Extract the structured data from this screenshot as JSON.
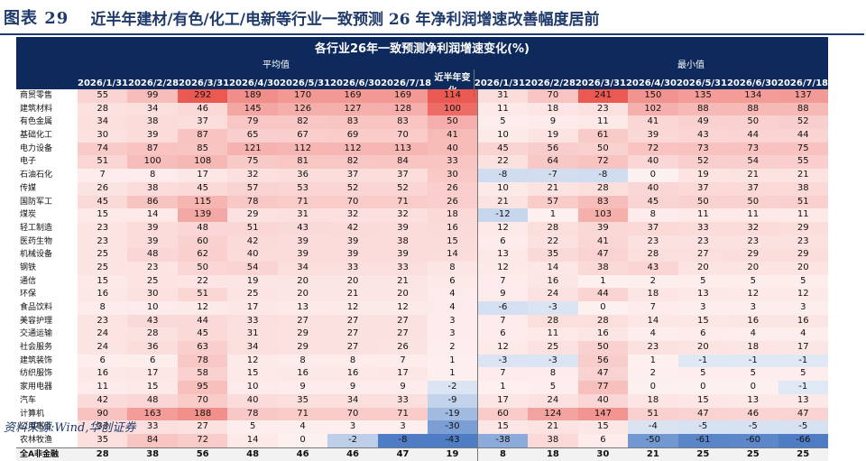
{
  "header": {
    "figure_label": "图表 29",
    "title": "近半年建材/有色/化工/电新等行业一致预测 26 年净利润增速改善幅度居前"
  },
  "table": {
    "caption": "各行业26年一致预测净利润增速变化(%)",
    "group_avg": "平均值",
    "group_min": "最小值",
    "columns": [
      "2026/1/31",
      "2026/2/28",
      "2026/3/31",
      "2026/4/30",
      "2026/5/31",
      "2026/6/30",
      "2026/7/18",
      "近半年变化",
      "2026/1/31",
      "2026/2/28",
      "2026/3/31",
      "2026/4/30",
      "2026/5/31",
      "2026/6/30",
      "2026/7/18"
    ],
    "rows": [
      {
        "name": "商贸零售",
        "values": [
          55,
          99,
          292,
          189,
          170,
          169,
          169,
          114,
          31,
          70,
          241,
          150,
          135,
          134,
          137
        ]
      },
      {
        "name": "建筑材料",
        "values": [
          28,
          34,
          46,
          145,
          126,
          127,
          128,
          100,
          11,
          18,
          23,
          102,
          88,
          88,
          88
        ]
      },
      {
        "name": "有色金属",
        "values": [
          34,
          38,
          37,
          79,
          82,
          83,
          83,
          50,
          5,
          9,
          11,
          41,
          49,
          50,
          52
        ]
      },
      {
        "name": "基础化工",
        "values": [
          30,
          39,
          87,
          65,
          67,
          69,
          70,
          41,
          10,
          19,
          61,
          39,
          43,
          44,
          44
        ]
      },
      {
        "name": "电力设备",
        "values": [
          74,
          87,
          85,
          121,
          112,
          112,
          113,
          40,
          45,
          56,
          50,
          72,
          73,
          73,
          75
        ]
      },
      {
        "name": "电子",
        "values": [
          51,
          100,
          108,
          75,
          81,
          82,
          84,
          33,
          22,
          64,
          72,
          40,
          52,
          54,
          55
        ]
      },
      {
        "name": "石油石化",
        "values": [
          7,
          8,
          17,
          32,
          36,
          37,
          37,
          30,
          -8,
          -7,
          -8,
          0,
          19,
          21,
          21
        ]
      },
      {
        "name": "传媒",
        "values": [
          26,
          38,
          45,
          57,
          53,
          52,
          52,
          26,
          10,
          21,
          28,
          40,
          37,
          37,
          38
        ]
      },
      {
        "name": "国防军工",
        "values": [
          45,
          86,
          115,
          78,
          71,
          70,
          71,
          26,
          21,
          57,
          83,
          45,
          50,
          50,
          51
        ]
      },
      {
        "name": "煤炭",
        "values": [
          15,
          14,
          139,
          29,
          31,
          32,
          32,
          18,
          -12,
          1,
          103,
          8,
          11,
          11,
          11
        ]
      },
      {
        "name": "轻工制造",
        "values": [
          23,
          39,
          48,
          51,
          43,
          42,
          39,
          16,
          12,
          28,
          39,
          37,
          33,
          32,
          29
        ]
      },
      {
        "name": "医药生物",
        "values": [
          23,
          39,
          60,
          42,
          39,
          39,
          38,
          15,
          6,
          22,
          41,
          23,
          23,
          23,
          23
        ]
      },
      {
        "name": "机械设备",
        "values": [
          25,
          48,
          62,
          40,
          39,
          39,
          39,
          14,
          13,
          35,
          47,
          28,
          27,
          29,
          29
        ]
      },
      {
        "name": "钢铁",
        "values": [
          25,
          23,
          50,
          54,
          34,
          33,
          33,
          8,
          12,
          14,
          38,
          43,
          20,
          20,
          20
        ]
      },
      {
        "name": "通信",
        "values": [
          15,
          25,
          22,
          19,
          20,
          20,
          21,
          6,
          7,
          16,
          1,
          2,
          5,
          5,
          5
        ]
      },
      {
        "name": "环保",
        "values": [
          16,
          30,
          51,
          25,
          20,
          21,
          20,
          4,
          9,
          24,
          44,
          18,
          13,
          12,
          12
        ]
      },
      {
        "name": "食品饮料",
        "values": [
          8,
          10,
          12,
          17,
          13,
          12,
          12,
          4,
          -6,
          -3,
          0,
          7,
          3,
          3,
          3
        ]
      },
      {
        "name": "美容护理",
        "values": [
          23,
          43,
          44,
          33,
          27,
          27,
          27,
          3,
          7,
          28,
          28,
          14,
          15,
          16,
          16
        ]
      },
      {
        "name": "交通运输",
        "values": [
          24,
          28,
          45,
          31,
          29,
          27,
          27,
          3,
          6,
          11,
          16,
          4,
          6,
          4,
          4
        ]
      },
      {
        "name": "社会服务",
        "values": [
          24,
          36,
          63,
          34,
          29,
          27,
          26,
          2,
          12,
          25,
          50,
          23,
          20,
          18,
          17
        ]
      },
      {
        "name": "建筑装饰",
        "values": [
          6,
          6,
          78,
          12,
          8,
          8,
          7,
          1,
          -3,
          -3,
          56,
          1,
          -1,
          -1,
          -1
        ]
      },
      {
        "name": "纺织服饰",
        "values": [
          16,
          17,
          58,
          15,
          16,
          16,
          17,
          1,
          7,
          8,
          47,
          2,
          5,
          5,
          5
        ]
      },
      {
        "name": "家用电器",
        "values": [
          11,
          15,
          95,
          10,
          9,
          9,
          9,
          -2,
          1,
          5,
          77,
          0,
          0,
          0,
          -1
        ]
      },
      {
        "name": "汽车",
        "values": [
          42,
          48,
          70,
          40,
          35,
          34,
          33,
          -9,
          17,
          24,
          40,
          18,
          15,
          13,
          13
        ]
      },
      {
        "name": "计算机",
        "values": [
          90,
          163,
          188,
          78,
          71,
          70,
          71,
          -19,
          60,
          124,
          147,
          51,
          47,
          46,
          47
        ]
      },
      {
        "name": "公用事业",
        "values": [
          33,
          33,
          27,
          5,
          4,
          3,
          3,
          -30,
          15,
          21,
          15,
          -4,
          -5,
          -5,
          -5
        ]
      },
      {
        "name": "农林牧渔",
        "values": [
          35,
          84,
          72,
          14,
          0,
          -2,
          -8,
          -43,
          -38,
          38,
          6,
          -50,
          -61,
          -60,
          -66
        ]
      }
    ],
    "total": {
      "name": "全A非金融",
      "values": [
        28,
        38,
        56,
        48,
        46,
        46,
        47,
        19,
        8,
        18,
        30,
        21,
        25,
        25,
        25
      ]
    }
  },
  "footer": {
    "source": "资料来源:Wind,华创证券"
  },
  "colors": {
    "header_bg": "#0e2a5c",
    "title": "#1f3a6b",
    "pos": "#e8473f",
    "neg": "#3b6fbf"
  }
}
